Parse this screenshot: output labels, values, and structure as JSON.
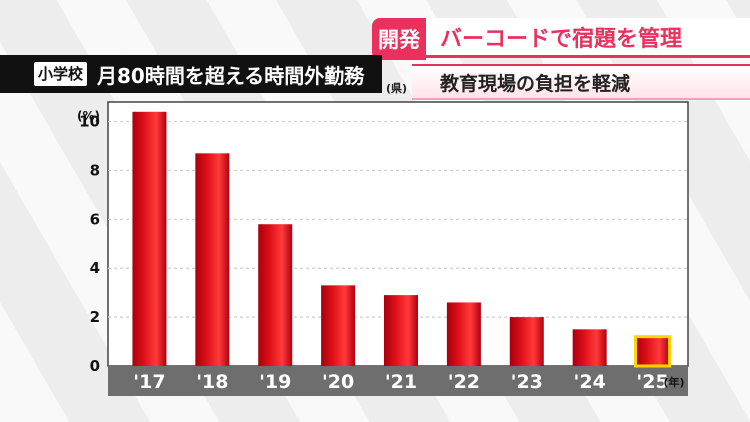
{
  "caption": {
    "tag": "開発",
    "line1": "バーコードで宿題を管理",
    "line2": "教育現場の負担を軽減"
  },
  "title": {
    "tag": "小学校",
    "text": "月80時間を超える時間外勤務",
    "note": "(県)"
  },
  "colors": {
    "bar": "#e0101a",
    "highlight": "#ffd400",
    "xaxis_band": "#6e6e6e",
    "accent": "#e8325d"
  },
  "chart_data": {
    "type": "bar",
    "title": "月80時間を超える時間外勤務",
    "y_unit_label": "(%)",
    "x_unit_label": "(年)",
    "categories": [
      "'17",
      "'18",
      "'19",
      "'20",
      "'21",
      "'22",
      "'23",
      "'24",
      "'25"
    ],
    "values": [
      10.4,
      8.7,
      5.8,
      3.3,
      2.9,
      2.6,
      2.0,
      1.5,
      1.2
    ],
    "highlight_category": "'25",
    "ylim": [
      0,
      10.8
    ],
    "yticks": [
      0,
      2,
      4,
      6,
      8,
      10
    ],
    "grid": true,
    "legend": "none"
  }
}
